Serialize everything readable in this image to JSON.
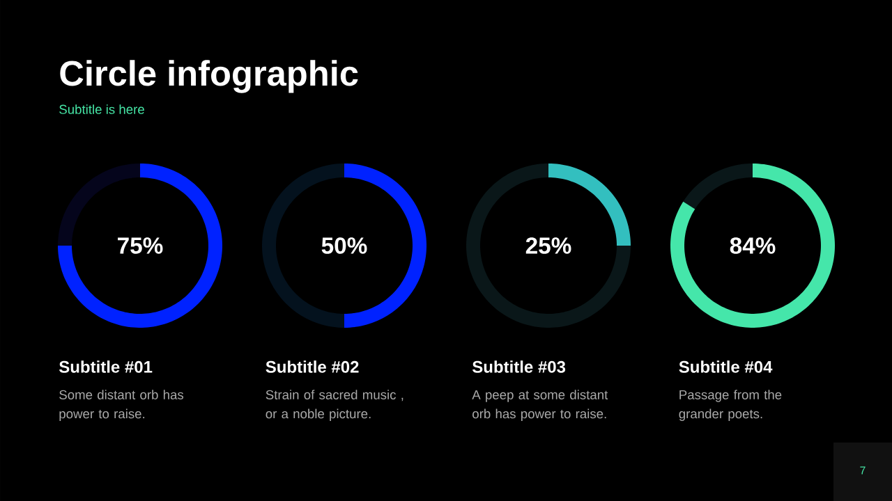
{
  "chart_data": [
    {
      "type": "other",
      "title": "Circle infographic",
      "subtitle": "Subtitle is here",
      "annotations": [
        "7"
      ]
    },
    {
      "type": "donut",
      "title": "Subtitle #01",
      "categories": [
        null,
        null
      ],
      "values": [
        75,
        25
      ],
      "colors": [
        "#0022ff",
        "#05051c"
      ],
      "value_labels": [
        "75%",
        null
      ],
      "annotations": [
        "Some distant orb has power to raise."
      ]
    },
    {
      "type": "donut",
      "title": "Subtitle #02",
      "categories": [
        null,
        null
      ],
      "values": [
        50,
        50
      ],
      "colors": [
        "#0022ff",
        "#04121e"
      ],
      "value_labels": [
        "50%",
        null
      ],
      "annotations": [
        "Strain of sacred music , or a noble picture."
      ]
    },
    {
      "type": "donut",
      "title": "Subtitle #03",
      "categories": [
        null,
        null
      ],
      "values": [
        25,
        75
      ],
      "colors": [
        "#33bfbf",
        "#0a1719"
      ],
      "value_labels": [
        "25%",
        null
      ],
      "annotations": [
        "A peep at some distant orb has power to raise."
      ]
    },
    {
      "type": "donut",
      "title": "Subtitle #04",
      "categories": [
        null,
        null
      ],
      "values": [
        84,
        16
      ],
      "colors": [
        "#45e6aa",
        "#0a1719"
      ],
      "value_labels": [
        "84%",
        null
      ],
      "annotations": [
        "Passage from the grander poets."
      ]
    }
  ]
}
